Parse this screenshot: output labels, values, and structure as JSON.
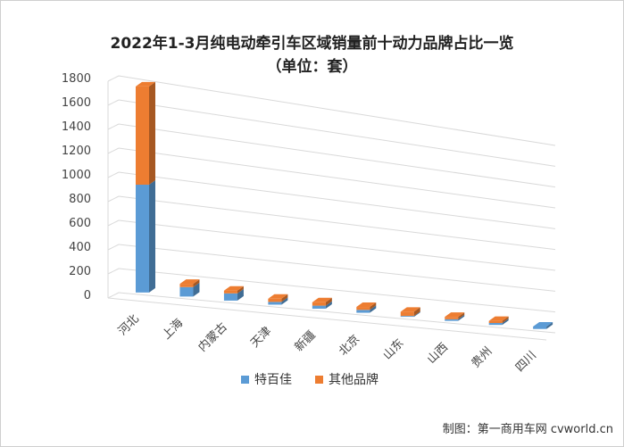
{
  "chart_data": {
    "type": "bar",
    "stacked": true,
    "title": "2022年1-3月纯电动牵引车区域销量前十动力品牌占比一览",
    "subtitle": "（单位：套）",
    "categories": [
      "河北",
      "上海",
      "内蒙古",
      "天津",
      "新疆",
      "北京",
      "山东",
      "山西",
      "贵州",
      "四川"
    ],
    "series": [
      {
        "name": "特百佳",
        "color": "#5b9bd5",
        "values": [
          900,
          80,
          62,
          24,
          27,
          26,
          8,
          15,
          18,
          23
        ]
      },
      {
        "name": "其他品牌",
        "color": "#ed7d31",
        "values": [
          820,
          28,
          24,
          28,
          30,
          26,
          38,
          22,
          20,
          0
        ]
      }
    ],
    "yticks": [
      0,
      200,
      400,
      600,
      800,
      1000,
      1200,
      1400,
      1600,
      1800
    ],
    "ylim": [
      0,
      1800
    ],
    "grid": true,
    "legend": "bottom"
  },
  "credit": "制图：第一商用车网 cvworld.cn"
}
